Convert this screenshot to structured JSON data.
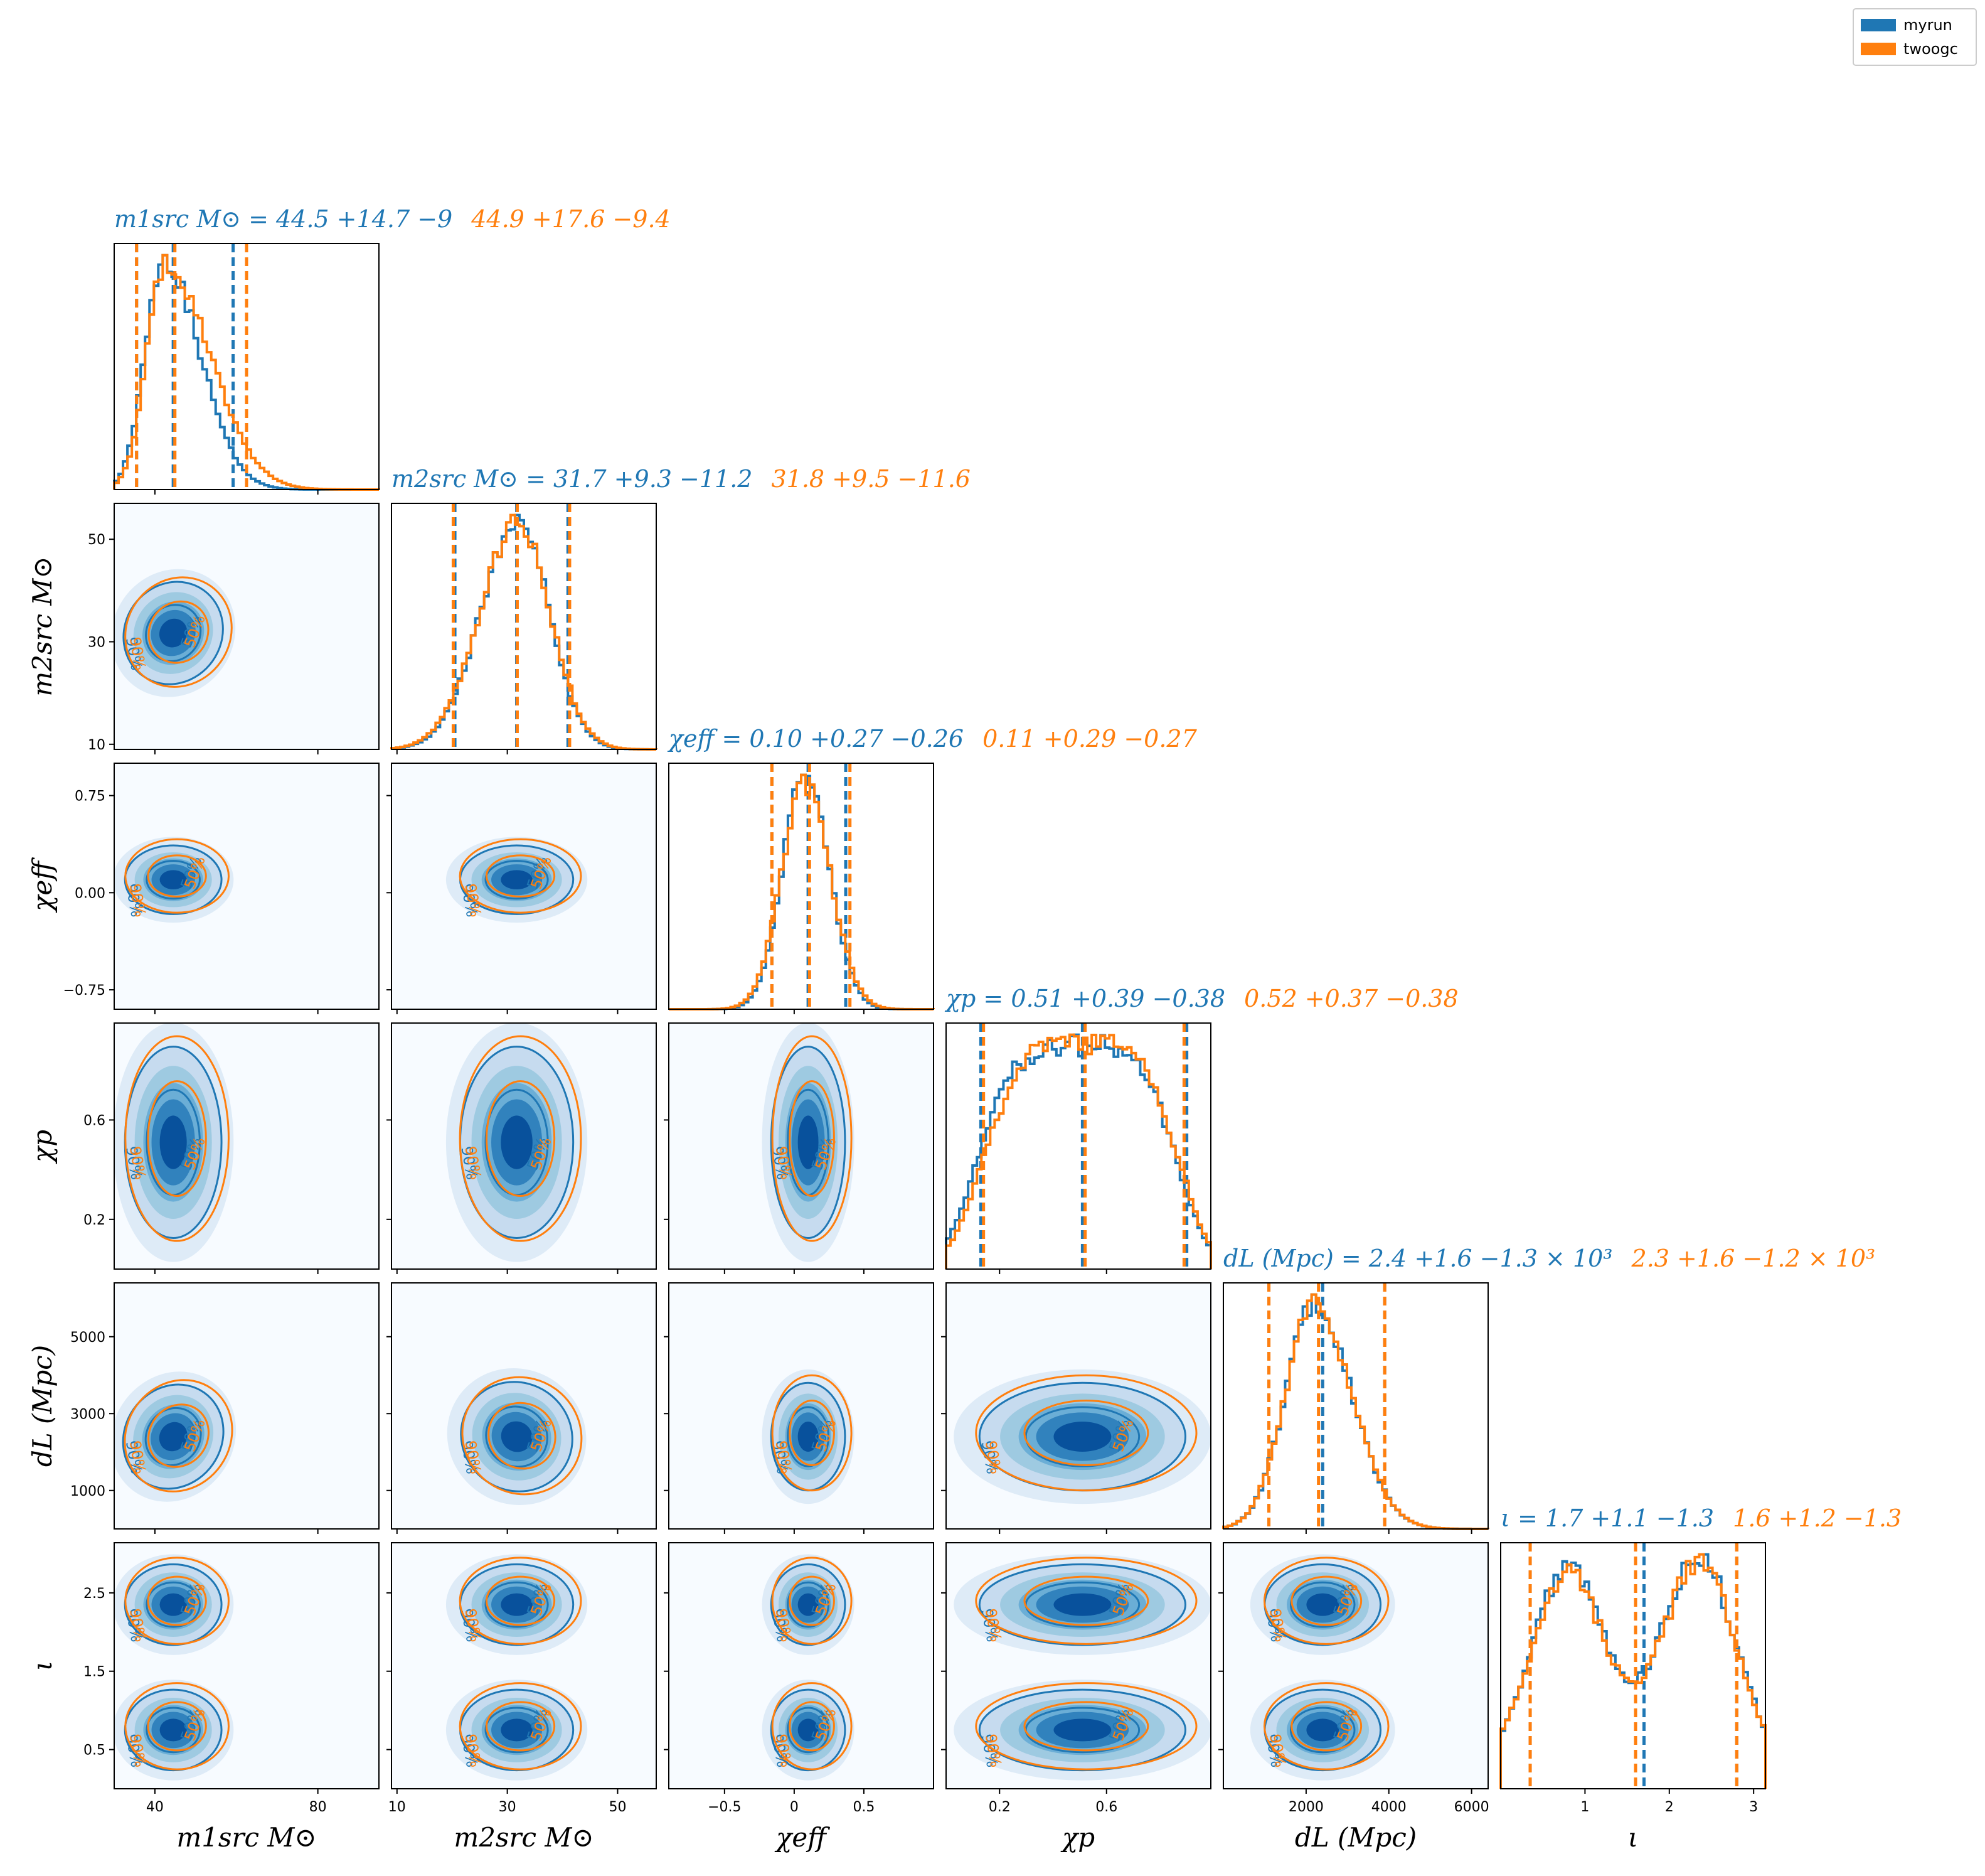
{
  "colors": {
    "myrun": "#1f77b4",
    "twoogc": "#ff7f0e"
  },
  "legend": {
    "placement": "top-right",
    "entries": [
      "myrun",
      "twoogc"
    ]
  },
  "chart_data": {
    "type": "corner",
    "parameters": [
      {
        "key": "m1",
        "label": "m1src M⊙",
        "range": [
          30,
          95
        ],
        "ticks": [
          40,
          80
        ],
        "title": {
          "myrun": "m1src M⊙ = 44.5 +14.7 −9",
          "twoogc": "44.9 +17.6 −9.4"
        },
        "median": {
          "myrun": 44.5,
          "twoogc": 44.9
        },
        "lo": {
          "myrun": 35.5,
          "twoogc": 35.5
        },
        "hi": {
          "myrun": 59.2,
          "twoogc": 62.5
        },
        "peak": {
          "myrun": 42.0,
          "twoogc": 42.5
        },
        "sigmaL": {
          "myrun": 4.5,
          "twoogc": 4.5
        },
        "sigmaR": {
          "myrun": 9,
          "twoogc": 11
        }
      },
      {
        "key": "m2",
        "label": "m2src M⊙",
        "range": [
          9,
          57
        ],
        "ticks": [
          10,
          30,
          50
        ],
        "title": {
          "myrun": "m2src M⊙ = 31.7 +9.3 −11.2",
          "twoogc": "31.8 +9.5 −11.6"
        },
        "median": {
          "myrun": 31.7,
          "twoogc": 31.8
        },
        "lo": {
          "myrun": 20.5,
          "twoogc": 20.2
        },
        "hi": {
          "myrun": 41.0,
          "twoogc": 41.3
        },
        "peak": {
          "myrun": 32.0,
          "twoogc": 32.0
        },
        "sigmaL": {
          "myrun": 6.8,
          "twoogc": 7
        },
        "sigmaR": {
          "myrun": 5.6,
          "twoogc": 5.8
        }
      },
      {
        "key": "chi_eff",
        "label": "χeff",
        "range": [
          -0.9,
          1.0
        ],
        "ticks": [
          -0.5,
          0.0,
          0.5
        ],
        "yticks": [
          -0.75,
          0.0,
          0.75
        ],
        "title": {
          "myrun": "χeff = 0.10 +0.27 −0.26",
          "twoogc": "0.11 +0.29 −0.27"
        },
        "median": {
          "myrun": 0.1,
          "twoogc": 0.11
        },
        "lo": {
          "myrun": -0.16,
          "twoogc": -0.16
        },
        "hi": {
          "myrun": 0.37,
          "twoogc": 0.4
        },
        "peak": {
          "myrun": 0.08,
          "twoogc": 0.08
        },
        "sigmaL": {
          "myrun": 0.16,
          "twoogc": 0.17
        },
        "sigmaR": {
          "myrun": 0.17,
          "twoogc": 0.18
        }
      },
      {
        "key": "chi_p",
        "label": "χp",
        "range": [
          0.0,
          0.99
        ],
        "ticks": [
          0.2,
          0.6
        ],
        "title": {
          "myrun": "χp = 0.51 +0.39 −0.38",
          "twoogc": "0.52 +0.37 −0.38"
        },
        "median": {
          "myrun": 0.51,
          "twoogc": 0.52
        },
        "lo": {
          "myrun": 0.13,
          "twoogc": 0.14
        },
        "hi": {
          "myrun": 0.9,
          "twoogc": 0.89
        },
        "peak": {
          "myrun": 0.5,
          "twoogc": 0.52
        },
        "sigmaL": {
          "myrun": 0.35,
          "twoogc": 0.35
        },
        "sigmaR": {
          "myrun": 0.33,
          "twoogc": 0.32
        }
      },
      {
        "key": "dL",
        "label": "dL (Mpc)",
        "range": [
          0,
          6400
        ],
        "ticks": [
          2000,
          4000,
          6000
        ],
        "yticks": [
          1000,
          3000,
          5000
        ],
        "title": {
          "myrun": "dL (Mpc) = 2.4 +1.6 −1.3 × 10³",
          "twoogc": "2.3 +1.6 −1.2 × 10³"
        },
        "median": {
          "myrun": 2400,
          "twoogc": 2300
        },
        "lo": {
          "myrun": 1100,
          "twoogc": 1100
        },
        "hi": {
          "myrun": 3900,
          "twoogc": 3900
        },
        "peak": {
          "myrun": 2200,
          "twoogc": 2200
        },
        "sigmaL": {
          "myrun": 700,
          "twoogc": 700
        },
        "sigmaR": {
          "myrun": 900,
          "twoogc": 900
        }
      },
      {
        "key": "iota",
        "label": "ι",
        "range": [
          0,
          3.14
        ],
        "ticks": [
          1,
          2,
          3
        ],
        "yticks": [
          0.5,
          1.5,
          2.5
        ],
        "title": {
          "myrun": "ι = 1.7 +1.1 −1.3",
          "twoogc": "1.6 +1.2 −1.3"
        },
        "median": {
          "myrun": 1.7,
          "twoogc": 1.6
        },
        "lo": {
          "myrun": 0.35,
          "twoogc": 0.35
        },
        "hi": {
          "myrun": 2.8,
          "twoogc": 2.8
        }
      }
    ],
    "contour_labels": [
      "50%",
      "90%"
    ],
    "grid": false
  }
}
